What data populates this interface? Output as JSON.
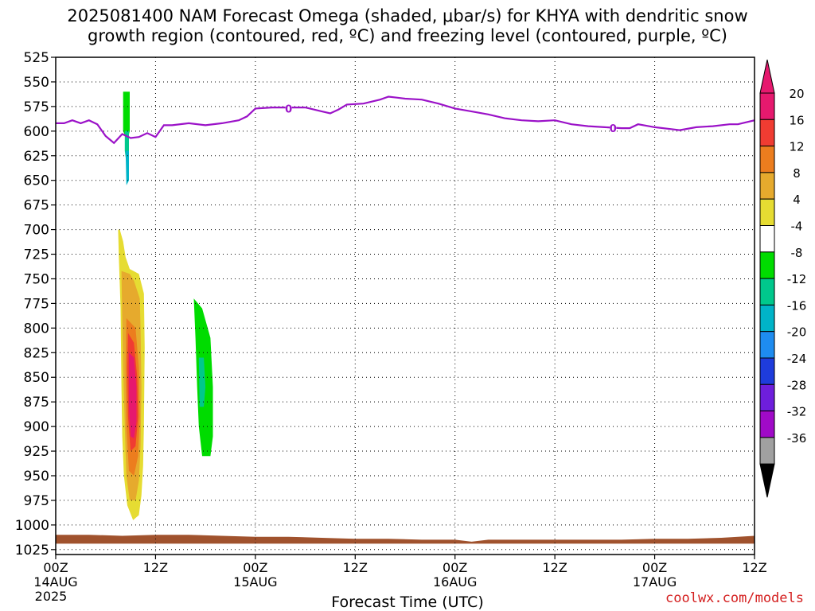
{
  "chart_data": {
    "type": "heatmap",
    "title_line1": "2025081400 NAM Forecast Omega (shaded, μbar/s) for KHYA with dendritic snow",
    "title_line2": "growth region (contoured, red, ºC) and freezing level (contoured, purple, ºC)",
    "xlabel": "Forecast Time (UTC)",
    "credit": "coolwx.com/models",
    "y_axis": {
      "ticks": [
        525,
        550,
        575,
        600,
        625,
        650,
        675,
        700,
        725,
        750,
        775,
        800,
        825,
        850,
        875,
        900,
        925,
        950,
        975,
        1000,
        1025
      ],
      "range": [
        525,
        1030
      ],
      "inverted": true
    },
    "x_axis": {
      "range_hours": [
        0,
        84
      ],
      "ticks": [
        {
          "hour": 0,
          "label": "00Z",
          "sub": "14AUG",
          "sub2": "2025"
        },
        {
          "hour": 12,
          "label": "12Z"
        },
        {
          "hour": 24,
          "label": "00Z",
          "sub": "15AUG"
        },
        {
          "hour": 36,
          "label": "12Z"
        },
        {
          "hour": 48,
          "label": "00Z",
          "sub": "16AUG"
        },
        {
          "hour": 60,
          "label": "12Z"
        },
        {
          "hour": 72,
          "label": "00Z",
          "sub": "17AUG"
        },
        {
          "hour": 84,
          "label": "12Z"
        }
      ]
    },
    "grid": "dotted",
    "colorbar": {
      "labels": [
        "20",
        "16",
        "12",
        "8",
        "4",
        "-4",
        "-8",
        "-12",
        "-16",
        "-20",
        "-24",
        "-28",
        "-32",
        "-36"
      ],
      "colors": [
        "#e6196e",
        "#f03c32",
        "#ec7d1e",
        "#e6aa2d",
        "#e6dc32",
        "#ffffff",
        "#00dc00",
        "#00c88c",
        "#00b4c8",
        "#1e8cf0",
        "#1e3cdc",
        "#6e1edc",
        "#a00ac8",
        "#a0a0a0"
      ],
      "top_color": "#e6196e",
      "bottom_color": "#000000"
    },
    "freezing_level": {
      "label": "0",
      "color": "#9b12c8",
      "points": [
        [
          0,
          592
        ],
        [
          1,
          592
        ],
        [
          2,
          589
        ],
        [
          3,
          592
        ],
        [
          4,
          589
        ],
        [
          5,
          593
        ],
        [
          6,
          605
        ],
        [
          7,
          612
        ],
        [
          8,
          603
        ],
        [
          9,
          607
        ],
        [
          10,
          606
        ],
        [
          11,
          602
        ],
        [
          12,
          606
        ],
        [
          13,
          594
        ],
        [
          14,
          594
        ],
        [
          16,
          592
        ],
        [
          18,
          594
        ],
        [
          20,
          592
        ],
        [
          22,
          589
        ],
        [
          23,
          585
        ],
        [
          24,
          577
        ],
        [
          26,
          576
        ],
        [
          28,
          576
        ],
        [
          30,
          576
        ],
        [
          32,
          580
        ],
        [
          33,
          582
        ],
        [
          34,
          578
        ],
        [
          35,
          573
        ],
        [
          37,
          572
        ],
        [
          39,
          568
        ],
        [
          40,
          565
        ],
        [
          41,
          566
        ],
        [
          42,
          567
        ],
        [
          44,
          568
        ],
        [
          46,
          572
        ],
        [
          48,
          577
        ],
        [
          50,
          580
        ],
        [
          52,
          583
        ],
        [
          54,
          587
        ],
        [
          56,
          589
        ],
        [
          58,
          590
        ],
        [
          60,
          589
        ],
        [
          62,
          593
        ],
        [
          64,
          595
        ],
        [
          66,
          596
        ],
        [
          68,
          597
        ],
        [
          69,
          597
        ],
        [
          70,
          593
        ],
        [
          72,
          596
        ],
        [
          74,
          598
        ],
        [
          75,
          599
        ],
        [
          77,
          596
        ],
        [
          79,
          595
        ],
        [
          81,
          593
        ],
        [
          82,
          593
        ],
        [
          84,
          589
        ]
      ],
      "label_positions": [
        [
          28,
          577
        ],
        [
          67,
          597
        ]
      ]
    },
    "terrain": {
      "color": "#a0522d",
      "top_points": [
        [
          0,
          1010
        ],
        [
          4,
          1010
        ],
        [
          8,
          1011
        ],
        [
          12,
          1010
        ],
        [
          16,
          1010
        ],
        [
          20,
          1011
        ],
        [
          24,
          1012
        ],
        [
          28,
          1012
        ],
        [
          32,
          1013
        ],
        [
          36,
          1014
        ],
        [
          40,
          1014
        ],
        [
          44,
          1015
        ],
        [
          48,
          1015
        ],
        [
          50,
          1017
        ],
        [
          52,
          1015
        ],
        [
          56,
          1015
        ],
        [
          60,
          1015
        ],
        [
          64,
          1015
        ],
        [
          68,
          1015
        ],
        [
          72,
          1014
        ],
        [
          76,
          1014
        ],
        [
          80,
          1013
        ],
        [
          84,
          1011
        ]
      ],
      "bottom_pressure": 1019
    },
    "omega_areas": [
      {
        "level": "-4",
        "points": [
          [
            7.3,
            525
          ],
          [
            9.3,
            525
          ],
          [
            9.4,
            560
          ],
          [
            9.4,
            640
          ],
          [
            9.3,
            690
          ],
          [
            9.0,
            715
          ],
          [
            8.5,
            718
          ],
          [
            8.1,
            690
          ],
          [
            7.7,
            630
          ],
          [
            7.3,
            570
          ]
        ]
      },
      {
        "level": "-4",
        "points": [
          [
            16.3,
            525
          ],
          [
            17.6,
            525
          ],
          [
            17.9,
            560
          ],
          [
            18.1,
            640
          ],
          [
            18.2,
            700
          ],
          [
            18.4,
            760
          ],
          [
            19.3,
            800
          ],
          [
            19.5,
            840
          ],
          [
            19.6,
            880
          ],
          [
            19.6,
            940
          ],
          [
            19.3,
            970
          ],
          [
            18.8,
            983
          ],
          [
            18.2,
            975
          ],
          [
            17.2,
            950
          ],
          [
            16.7,
            900
          ],
          [
            16.5,
            850
          ],
          [
            16.3,
            760
          ],
          [
            15.9,
            650
          ],
          [
            15.9,
            560
          ]
        ]
      },
      {
        "level": "-4",
        "points": [
          [
            26.5,
            930
          ],
          [
            27.2,
            930
          ],
          [
            27.3,
            940
          ],
          [
            26.5,
            940
          ]
        ]
      },
      {
        "level": "-4",
        "points": [
          [
            65.5,
            952
          ],
          [
            66.3,
            953
          ],
          [
            66.4,
            956
          ],
          [
            65.6,
            956
          ]
        ]
      },
      {
        "level": "-8",
        "points": [
          [
            8.1,
            560
          ],
          [
            8.9,
            560
          ],
          [
            8.9,
            600
          ],
          [
            8.6,
            610
          ],
          [
            8.1,
            600
          ]
        ]
      },
      {
        "level": "-8",
        "points": [
          [
            16.6,
            770
          ],
          [
            17.6,
            780
          ],
          [
            18.6,
            810
          ],
          [
            18.9,
            860
          ],
          [
            18.9,
            910
          ],
          [
            18.6,
            930
          ],
          [
            17.6,
            930
          ],
          [
            17.2,
            900
          ],
          [
            17.0,
            860
          ],
          [
            16.8,
            810
          ]
        ]
      },
      {
        "level": "-12",
        "points": [
          [
            8.3,
            600
          ],
          [
            8.8,
            600
          ],
          [
            8.8,
            625
          ],
          [
            8.5,
            632
          ],
          [
            8.3,
            620
          ]
        ]
      },
      {
        "level": "-12",
        "points": [
          [
            17.2,
            830
          ],
          [
            17.8,
            830
          ],
          [
            18.0,
            860
          ],
          [
            17.8,
            880
          ],
          [
            17.3,
            880
          ]
        ]
      },
      {
        "level": "-16",
        "points": [
          [
            8.4,
            620
          ],
          [
            8.8,
            620
          ],
          [
            8.8,
            650
          ],
          [
            8.5,
            655
          ]
        ]
      },
      {
        "level": "-4",
        "points": [
          [
            81.8,
            893
          ],
          [
            82.7,
            893
          ],
          [
            82.7,
            930
          ],
          [
            81.8,
            930
          ]
        ]
      },
      {
        "level": "4",
        "points": [
          [
            7.7,
            700
          ],
          [
            8.1,
            712
          ],
          [
            8.4,
            728
          ],
          [
            8.9,
            740
          ],
          [
            10.0,
            745
          ],
          [
            10.6,
            765
          ],
          [
            10.7,
            820
          ],
          [
            10.6,
            900
          ],
          [
            10.5,
            940
          ],
          [
            10.3,
            970
          ],
          [
            10.0,
            990
          ],
          [
            9.3,
            995
          ],
          [
            8.6,
            980
          ],
          [
            8.2,
            950
          ],
          [
            8.0,
            910
          ],
          [
            7.9,
            860
          ],
          [
            7.8,
            780
          ],
          [
            7.6,
            730
          ],
          [
            7.5,
            700
          ]
        ]
      },
      {
        "level": "8",
        "points": [
          [
            7.9,
            742
          ],
          [
            8.9,
            745
          ],
          [
            9.4,
            752
          ],
          [
            10.1,
            770
          ],
          [
            10.2,
            800
          ],
          [
            10.3,
            860
          ],
          [
            10.2,
            920
          ],
          [
            10.0,
            955
          ],
          [
            9.6,
            975
          ],
          [
            8.9,
            975
          ],
          [
            8.5,
            950
          ],
          [
            8.3,
            900
          ],
          [
            8.1,
            840
          ],
          [
            8.0,
            790
          ]
        ]
      },
      {
        "level": "12",
        "points": [
          [
            8.5,
            790
          ],
          [
            9.6,
            800
          ],
          [
            10.0,
            840
          ],
          [
            10.1,
            890
          ],
          [
            9.9,
            930
          ],
          [
            9.4,
            950
          ],
          [
            8.8,
            945
          ],
          [
            8.5,
            900
          ],
          [
            8.4,
            840
          ]
        ]
      },
      {
        "level": "16",
        "points": [
          [
            8.7,
            805
          ],
          [
            9.4,
            815
          ],
          [
            9.8,
            850
          ],
          [
            9.9,
            890
          ],
          [
            9.6,
            920
          ],
          [
            9.0,
            925
          ],
          [
            8.7,
            890
          ],
          [
            8.6,
            840
          ]
        ]
      },
      {
        "level": "20",
        "points": [
          [
            8.8,
            825
          ],
          [
            9.4,
            830
          ],
          [
            9.7,
            860
          ],
          [
            9.7,
            895
          ],
          [
            9.4,
            912
          ],
          [
            9.0,
            910
          ],
          [
            8.8,
            880
          ]
        ]
      }
    ]
  }
}
